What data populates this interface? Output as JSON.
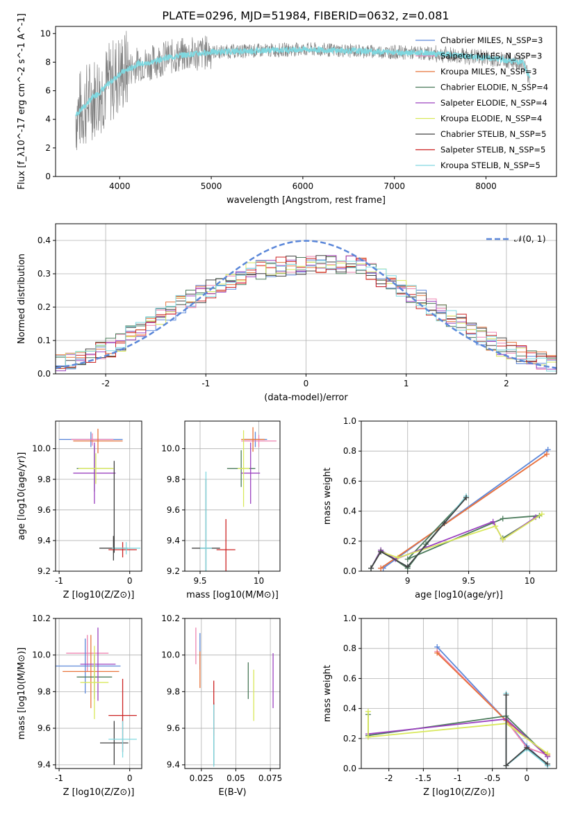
{
  "figure": {
    "title": "PLATE=0296, MJD=51984, FIBERID=0632, z=0.081"
  },
  "chart_data": [
    {
      "id": "spectrum",
      "type": "line",
      "xlabel": "wavelength [Angstrom, rest frame]",
      "ylabel": "Flux [f_λ10^-17 erg cm^-2 s^-1 A^-1]",
      "xlim": [
        3300,
        8770
      ],
      "ylim": [
        0,
        10.5
      ],
      "xticks": [
        4000,
        5000,
        6000,
        7000,
        8000
      ],
      "yticks": [
        0,
        2,
        4,
        6,
        8,
        10
      ],
      "legend_position": "top-right",
      "legend": [
        {
          "label": "Chabrier MILES, N_SSP=3",
          "color": "#5b87d9"
        },
        {
          "label": "Salpeter MILES, N_SSP=3",
          "color": "#ee82b0"
        },
        {
          "label": "Kroupa MILES, N_SSP=3",
          "color": "#e8743b"
        },
        {
          "label": "Chabrier ELODIE, N_SSP=4",
          "color": "#4a7a5a"
        },
        {
          "label": "Salpeter ELODIE, N_SSP=4",
          "color": "#9a40bf"
        },
        {
          "label": "Kroupa ELODIE, N_SSP=4",
          "color": "#d8e85a"
        },
        {
          "label": "Chabrier STELIB, N_SSP=5",
          "color": "#404040"
        },
        {
          "label": "Salpeter STELIB, N_SSP=5",
          "color": "#cc2222"
        },
        {
          "label": "Kroupa STELIB, N_SSP=5",
          "color": "#7fd8e0"
        }
      ],
      "data_color": "#808080",
      "model_color": "#7fd8e0",
      "continuum_knots": {
        "x": [
          3520,
          3600,
          3700,
          3800,
          3900,
          4000,
          4100,
          4200,
          4300,
          4500,
          4700,
          5000,
          5500,
          6000,
          6500,
          7000,
          7400,
          7600,
          8000,
          8400,
          8500
        ],
        "y": [
          4.3,
          4.8,
          5.5,
          6.0,
          6.6,
          7.2,
          7.5,
          7.9,
          7.9,
          8.3,
          8.5,
          8.7,
          8.8,
          8.9,
          8.8,
          8.7,
          8.6,
          8.5,
          8.3,
          8.0,
          6.5
        ]
      }
    },
    {
      "id": "residuals",
      "type": "line",
      "xlabel": "(data-model)/error",
      "ylabel": "Normed distribution",
      "xlim": [
        -2.5,
        2.5
      ],
      "ylim": [
        0,
        0.45
      ],
      "xticks": [
        -2,
        -1,
        0,
        1,
        2
      ],
      "yticks": [
        0.0,
        0.1,
        0.2,
        0.3,
        0.4
      ],
      "legend_position": "top-right",
      "normal_label": "𝒩(0, 1)",
      "normal_color": "#5b87d9",
      "histogram_shape": {
        "x": [
          -2.5,
          -2.0,
          -1.5,
          -1.0,
          -0.5,
          0.0,
          0.5,
          1.0,
          1.5,
          2.0,
          2.5
        ],
        "y": [
          0.03,
          0.07,
          0.16,
          0.25,
          0.31,
          0.33,
          0.33,
          0.25,
          0.16,
          0.07,
          0.03
        ]
      }
    },
    {
      "id": "age-vs-Z",
      "type": "scatter",
      "xlabel": "Z [log10(Z/Z⊙)]",
      "ylabel": "age  [log10(age/yr)]",
      "xlim": [
        -1.05,
        0.17
      ],
      "ylim": [
        9.2,
        10.18
      ],
      "xticks": [
        -1,
        0
      ],
      "yticks": [
        9.2,
        9.4,
        9.6,
        9.8,
        10.0
      ],
      "points": [
        {
          "x": -0.55,
          "y": 10.06,
          "xerr": 0.45,
          "yerr": 0.05,
          "color": "#5b87d9"
        },
        {
          "x": -0.53,
          "y": 10.06,
          "xerr": 0.3,
          "yerr": 0.04,
          "color": "#ee82b0"
        },
        {
          "x": -0.45,
          "y": 10.05,
          "xerr": 0.35,
          "yerr": 0.08,
          "color": "#e8743b"
        },
        {
          "x": -0.5,
          "y": 9.87,
          "xerr": 0.25,
          "yerr": 0.15,
          "color": "#4a7a5a"
        },
        {
          "x": -0.5,
          "y": 9.84,
          "xerr": 0.3,
          "yerr": 0.2,
          "color": "#9a40bf"
        },
        {
          "x": -0.48,
          "y": 9.87,
          "xerr": 0.25,
          "yerr": 0.1,
          "color": "#d8e85a"
        },
        {
          "x": -0.23,
          "y": 9.35,
          "xerr": 0.2,
          "yerr": 0.08,
          "color": "#404040"
        },
        {
          "x": -0.1,
          "y": 9.34,
          "xerr": 0.2,
          "yerr": 0.05,
          "color": "#cc2222"
        },
        {
          "x": -0.05,
          "y": 9.35,
          "xerr": 0.2,
          "yerr": 0.04,
          "color": "#7fd8e0"
        },
        {
          "x": -0.22,
          "y": 9.62,
          "xerr": 0.0,
          "yerr": 0.3,
          "color": "#404040"
        }
      ]
    },
    {
      "id": "age-vs-mass",
      "type": "scatter",
      "xlabel": "mass [log10(M/M⊙)]",
      "ylabel": "",
      "xlim": [
        9.37,
        10.18
      ],
      "ylim": [
        9.2,
        10.18
      ],
      "xticks": [
        9.5,
        10.0
      ],
      "yticks": [
        9.2,
        9.4,
        9.6,
        9.8,
        10.0
      ],
      "points": [
        {
          "x": 9.97,
          "y": 10.06,
          "xerr": 0.1,
          "yerr": 0.05,
          "color": "#5b87d9"
        },
        {
          "x": 10.0,
          "y": 10.05,
          "xerr": 0.15,
          "yerr": 0.04,
          "color": "#ee82b0"
        },
        {
          "x": 9.95,
          "y": 10.06,
          "xerr": 0.1,
          "yerr": 0.08,
          "color": "#e8743b"
        },
        {
          "x": 9.85,
          "y": 9.87,
          "xerr": 0.12,
          "yerr": 0.12,
          "color": "#4a7a5a"
        },
        {
          "x": 9.93,
          "y": 9.84,
          "xerr": 0.08,
          "yerr": 0.2,
          "color": "#9a40bf"
        },
        {
          "x": 9.87,
          "y": 9.87,
          "xerr": 0.05,
          "yerr": 0.25,
          "color": "#d8e85a"
        },
        {
          "x": 9.55,
          "y": 9.35,
          "xerr": 0.12,
          "yerr": 0.45,
          "color": "#404040"
        },
        {
          "x": 9.72,
          "y": 9.34,
          "xerr": 0.08,
          "yerr": 0.2,
          "color": "#cc2222"
        },
        {
          "x": 9.55,
          "y": 9.35,
          "xerr": 0.05,
          "yerr": 0.5,
          "color": "#7fd8e0"
        }
      ]
    },
    {
      "id": "massweight-vs-age",
      "type": "line",
      "xlabel": "age  [log10(age/yr)]",
      "ylabel": "mass weight",
      "xlim": [
        8.62,
        10.22
      ],
      "ylim": [
        0.0,
        1.0
      ],
      "xticks": [
        9.0,
        9.5,
        10.0
      ],
      "yticks": [
        0.0,
        0.2,
        0.4,
        0.6,
        0.8,
        1.0
      ],
      "series": [
        {
          "color": "#5b87d9",
          "x": [
            8.8,
            10.15
          ],
          "y": [
            0.02,
            0.81
          ]
        },
        {
          "color": "#ee82b0",
          "x": [
            8.78,
            10.14
          ],
          "y": [
            0.02,
            0.78
          ]
        },
        {
          "color": "#e8743b",
          "x": [
            8.78,
            10.14
          ],
          "y": [
            0.02,
            0.78
          ]
        },
        {
          "color": "#4a7a5a",
          "x": [
            8.7,
            8.78,
            9.0,
            9.15,
            9.48,
            9.0,
            9.78,
            10.08,
            9.78
          ],
          "y": [
            0.02,
            0.14,
            0.02,
            0.18,
            0.49,
            0.08,
            0.35,
            0.37,
            0.22
          ]
        },
        {
          "color": "#9a40bf",
          "x": [
            8.7,
            8.78,
            8.9,
            9.7,
            9.78,
            10.05
          ],
          "y": [
            0.02,
            0.14,
            0.08,
            0.33,
            0.21,
            0.36
          ]
        },
        {
          "color": "#d8e85a",
          "x": [
            8.7,
            8.78,
            8.92,
            9.72,
            9.78,
            10.1
          ],
          "y": [
            0.02,
            0.13,
            0.09,
            0.3,
            0.21,
            0.38
          ]
        },
        {
          "color": "#7fd8e0",
          "x": [
            8.7,
            8.78,
            9.0,
            9.3,
            9.48
          ],
          "y": [
            0.02,
            0.13,
            0.03,
            0.32,
            0.5
          ]
        },
        {
          "color": "#404040",
          "x": [
            8.7,
            8.78,
            9.0,
            9.3,
            9.48
          ],
          "y": [
            0.02,
            0.13,
            0.03,
            0.32,
            0.49
          ]
        }
      ]
    },
    {
      "id": "mass-vs-Z",
      "type": "scatter",
      "xlabel": "Z [log10(Z/Z⊙)]",
      "ylabel": "mass [log10(M/M⊙)]",
      "xlim": [
        -1.05,
        0.17
      ],
      "ylim": [
        9.38,
        10.2
      ],
      "xticks": [
        -1,
        0
      ],
      "yticks": [
        9.4,
        9.6,
        9.8,
        10.0,
        10.2
      ],
      "points": [
        {
          "x": -0.6,
          "y": 10.01,
          "xerr": 0.3,
          "yerr": 0.1,
          "color": "#ee82b0"
        },
        {
          "x": -0.63,
          "y": 9.94,
          "xerr": 0.5,
          "yerr": 0.15,
          "color": "#5b87d9"
        },
        {
          "x": -0.55,
          "y": 9.91,
          "xerr": 0.4,
          "yerr": 0.2,
          "color": "#e8743b"
        },
        {
          "x": -0.5,
          "y": 9.88,
          "xerr": 0.25,
          "yerr": 0.12,
          "color": "#4a7a5a"
        },
        {
          "x": -0.45,
          "y": 9.95,
          "xerr": 0.25,
          "yerr": 0.2,
          "color": "#9a40bf"
        },
        {
          "x": -0.5,
          "y": 9.85,
          "xerr": 0.2,
          "yerr": 0.2,
          "color": "#d8e85a"
        },
        {
          "x": -0.22,
          "y": 9.52,
          "xerr": 0.2,
          "yerr": 0.12,
          "color": "#404040"
        },
        {
          "x": -0.1,
          "y": 9.67,
          "xerr": 0.2,
          "yerr": 0.2,
          "color": "#cc2222"
        },
        {
          "x": -0.1,
          "y": 9.54,
          "xerr": 0.2,
          "yerr": 0.1,
          "color": "#7fd8e0"
        }
      ]
    },
    {
      "id": "mass-vs-ebv",
      "type": "scatter",
      "xlabel": "E(B-V)",
      "ylabel": "",
      "xlim": [
        0.013,
        0.082
      ],
      "ylim": [
        9.38,
        10.2
      ],
      "xticks": [
        0.025,
        0.05,
        0.075
      ],
      "yticks": [
        9.4,
        9.6,
        9.8,
        10.0,
        10.2
      ],
      "points": [
        {
          "x": 0.021,
          "y": 10.05,
          "xerr": 0.0,
          "yerr": 0.1,
          "color": "#ee82b0"
        },
        {
          "x": 0.024,
          "y": 10.02,
          "xerr": 0.0,
          "yerr": 0.1,
          "color": "#5b87d9"
        },
        {
          "x": 0.024,
          "y": 9.92,
          "xerr": 0.0,
          "yerr": 0.1,
          "color": "#e8743b"
        },
        {
          "x": 0.059,
          "y": 9.86,
          "xerr": 0.0,
          "yerr": 0.1,
          "color": "#4a7a5a"
        },
        {
          "x": 0.077,
          "y": 9.86,
          "xerr": 0.0,
          "yerr": 0.15,
          "color": "#9a40bf"
        },
        {
          "x": 0.063,
          "y": 9.78,
          "xerr": 0.0,
          "yerr": 0.14,
          "color": "#d8e85a"
        },
        {
          "x": 0.034,
          "y": 9.57,
          "xerr": 0.0,
          "yerr": 0.17,
          "color": "#404040"
        },
        {
          "x": 0.034,
          "y": 9.71,
          "xerr": 0.0,
          "yerr": 0.15,
          "color": "#cc2222"
        },
        {
          "x": 0.034,
          "y": 9.56,
          "xerr": 0.0,
          "yerr": 0.17,
          "color": "#7fd8e0"
        }
      ]
    },
    {
      "id": "massweight-vs-Z",
      "type": "line",
      "xlabel": "Z [log10(Z/Z⊙)]",
      "ylabel": "mass weight",
      "xlim": [
        -2.4,
        0.43
      ],
      "ylim": [
        0.0,
        1.0
      ],
      "xticks": [
        -2.0,
        -1.5,
        -1.0,
        -0.5,
        0.0
      ],
      "yticks": [
        0.0,
        0.2,
        0.4,
        0.6,
        0.8,
        1.0
      ],
      "series": [
        {
          "color": "#5b87d9",
          "x": [
            -1.3,
            -0.3,
            0.0,
            0.3
          ],
          "y": [
            0.81,
            0.32,
            0.15,
            0.02
          ]
        },
        {
          "color": "#ee82b0",
          "x": [
            -1.3,
            -0.3,
            0.0,
            0.3
          ],
          "y": [
            0.78,
            0.32,
            0.14,
            0.09
          ]
        },
        {
          "color": "#e8743b",
          "x": [
            -1.3,
            -0.3,
            0.3
          ],
          "y": [
            0.77,
            0.32,
            0.09
          ]
        },
        {
          "color": "#4a7a5a",
          "x": [
            -2.3,
            -2.3,
            -0.3,
            0.3
          ],
          "y": [
            0.36,
            0.22,
            0.35,
            0.08
          ]
        },
        {
          "color": "#9a40bf",
          "x": [
            -2.3,
            -0.3,
            0.3
          ],
          "y": [
            0.23,
            0.33,
            0.08
          ]
        },
        {
          "color": "#d8e85a",
          "x": [
            -2.3,
            -2.3,
            -0.3,
            0.3
          ],
          "y": [
            0.38,
            0.21,
            0.3,
            0.1
          ]
        },
        {
          "color": "#7fd8e0",
          "x": [
            -0.3,
            -0.3,
            0.0,
            0.3
          ],
          "y": [
            0.5,
            0.02,
            0.13,
            0.02
          ]
        },
        {
          "color": "#404040",
          "x": [
            -0.3,
            -0.3,
            0.0,
            0.3
          ],
          "y": [
            0.49,
            0.02,
            0.14,
            0.03
          ]
        }
      ]
    }
  ]
}
